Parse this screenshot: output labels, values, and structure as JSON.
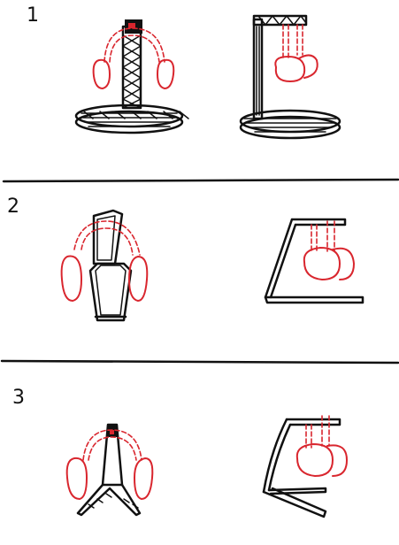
{
  "sections": [
    {
      "number": "1",
      "label_left": "",
      "label_right": ""
    },
    {
      "number": "2",
      "label_left": "",
      "label_right": ""
    },
    {
      "number": "3",
      "label_left": "",
      "label_right": ""
    }
  ],
  "colors": {
    "ink": "#111111",
    "accent": "#d9262e",
    "background": "#ffffff"
  }
}
